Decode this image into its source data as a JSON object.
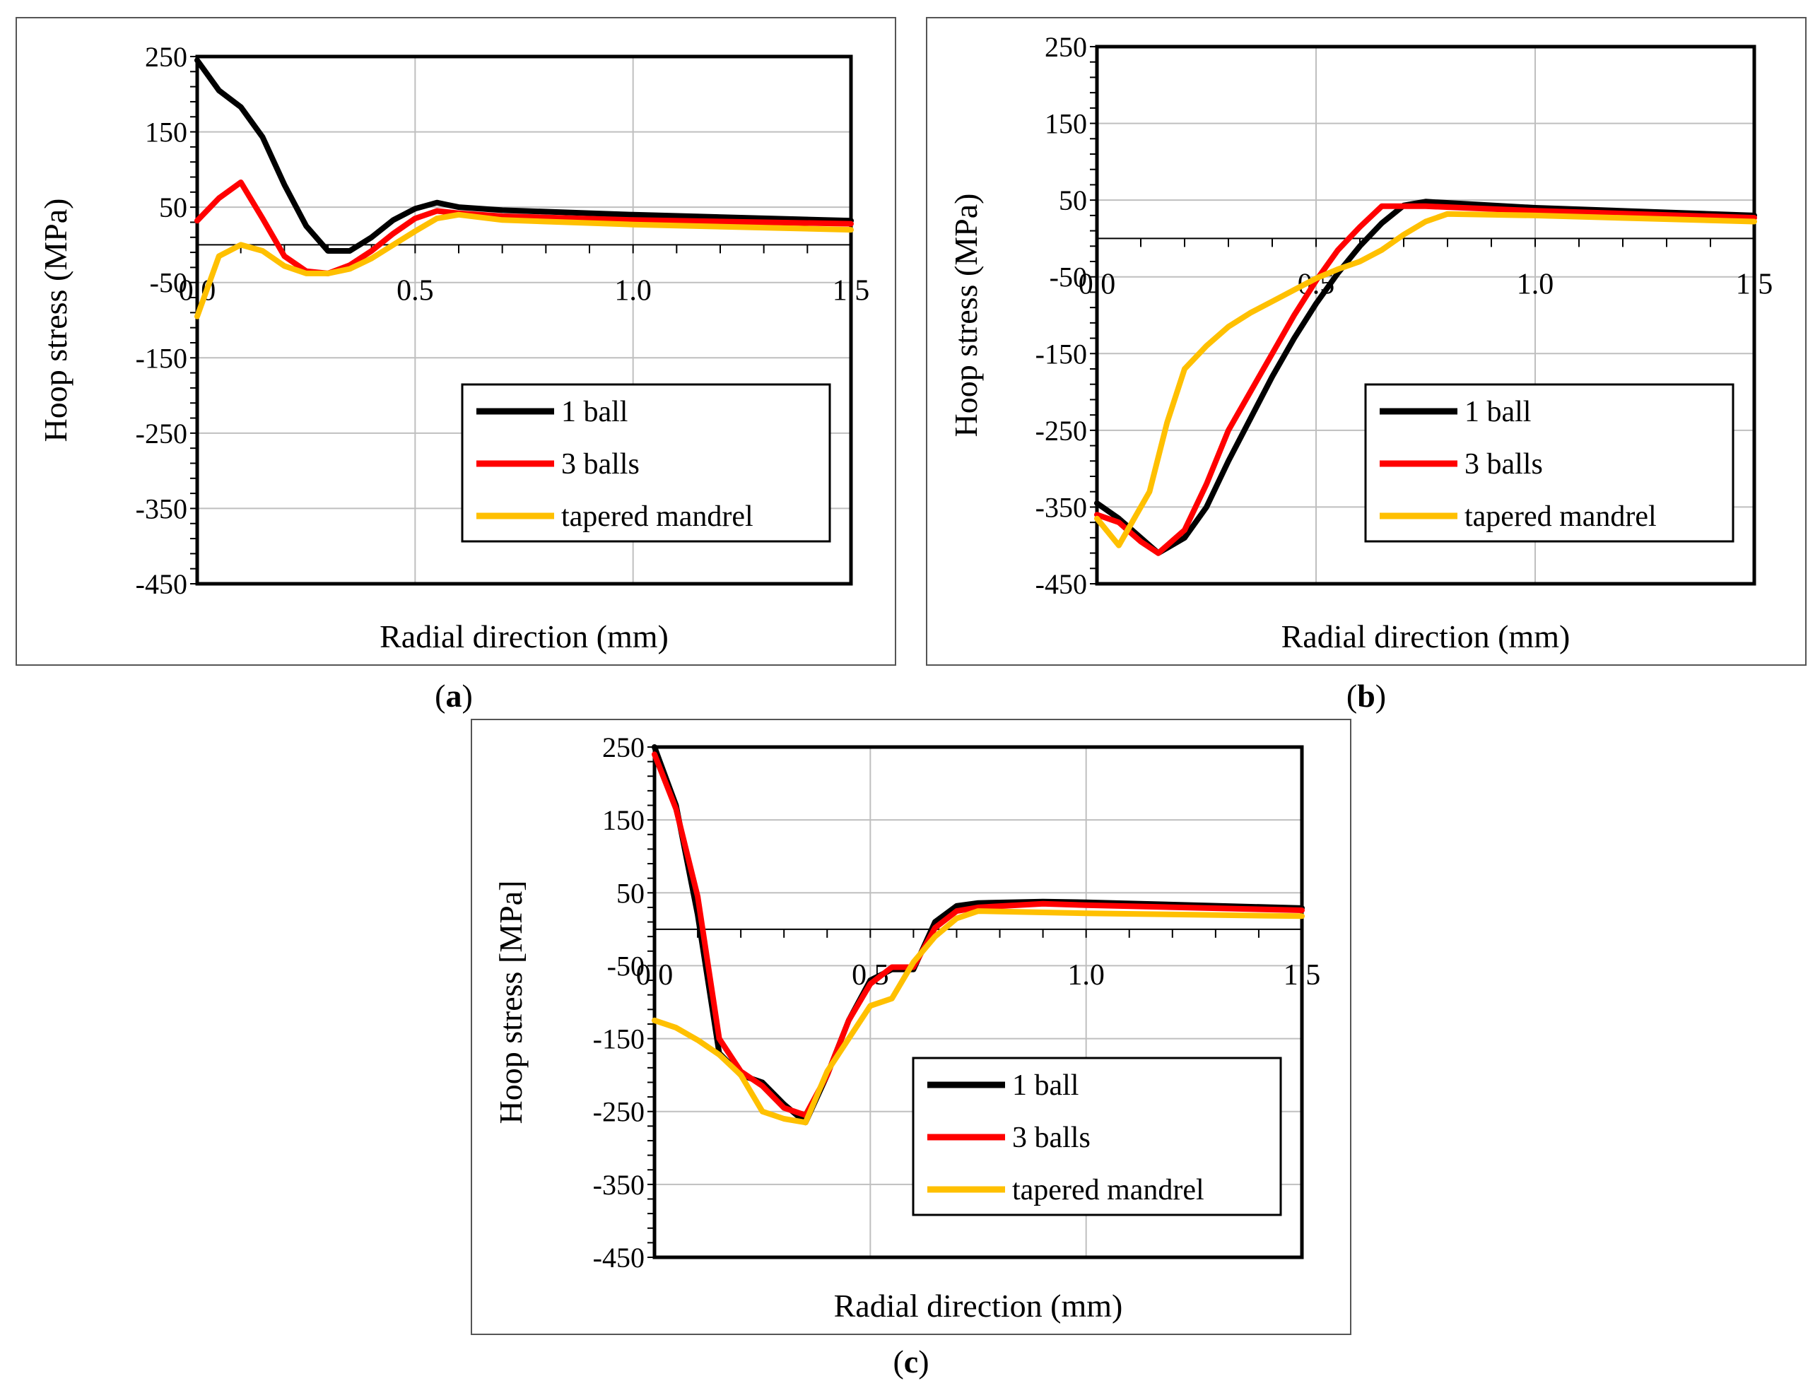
{
  "captions": {
    "a": "a",
    "b": "b",
    "c": "c"
  },
  "colors": {
    "one_ball": "#000000",
    "three_balls": "#ff0000",
    "tapered": "#ffc000",
    "grid": "#bfbfbf"
  },
  "chart_data": [
    {
      "id": "a",
      "type": "line",
      "xlabel": "Radial direction (mm)",
      "ylabel": "Hoop stress (MPa)",
      "xlim": [
        0,
        1.5
      ],
      "ylim": [
        -450,
        250
      ],
      "x_ticks": [
        "0.0",
        "0.5",
        "1.0",
        "1.5"
      ],
      "y_ticks": [
        "250",
        "150",
        "50",
        "-50",
        "-150",
        "-250",
        "-350",
        "-450"
      ],
      "grid": true,
      "legend_position": "bottom-right",
      "series": [
        {
          "name": "1 ball",
          "x": [
            0,
            0.05,
            0.1,
            0.15,
            0.2,
            0.25,
            0.3,
            0.35,
            0.4,
            0.45,
            0.5,
            0.55,
            0.6,
            0.7,
            1.0,
            1.5
          ],
          "y": [
            245,
            205,
            183,
            143,
            80,
            25,
            -8,
            -8,
            10,
            33,
            48,
            56,
            50,
            46,
            40,
            32
          ]
        },
        {
          "name": "3 balls",
          "x": [
            0,
            0.05,
            0.1,
            0.15,
            0.2,
            0.25,
            0.3,
            0.35,
            0.4,
            0.45,
            0.5,
            0.55,
            0.6,
            0.7,
            1.0,
            1.5
          ],
          "y": [
            32,
            62,
            83,
            35,
            -15,
            -35,
            -38,
            -27,
            -8,
            15,
            35,
            45,
            42,
            38,
            33,
            28
          ]
        },
        {
          "name": "tapered mandrel",
          "x": [
            0,
            0.05,
            0.1,
            0.15,
            0.2,
            0.25,
            0.3,
            0.35,
            0.4,
            0.45,
            0.5,
            0.55,
            0.6,
            0.7,
            1.0,
            1.5
          ],
          "y": [
            -95,
            -15,
            0,
            -8,
            -28,
            -38,
            -38,
            -32,
            -18,
            0,
            18,
            35,
            40,
            33,
            27,
            20
          ]
        }
      ]
    },
    {
      "id": "b",
      "type": "line",
      "xlabel": "Radial direction (mm)",
      "ylabel": "Hoop stress (MPa)",
      "xlim": [
        0,
        1.5
      ],
      "ylim": [
        -450,
        250
      ],
      "x_ticks": [
        "0.0",
        "0.5",
        "1.0",
        "1.5"
      ],
      "y_ticks": [
        "250",
        "150",
        "50",
        "-50",
        "-150",
        "-250",
        "-350",
        "-450"
      ],
      "grid": true,
      "legend_position": "bottom-right",
      "series": [
        {
          "name": "1 ball",
          "x": [
            0,
            0.05,
            0.1,
            0.14,
            0.2,
            0.25,
            0.3,
            0.35,
            0.4,
            0.45,
            0.5,
            0.55,
            0.6,
            0.65,
            0.7,
            0.75,
            1.0,
            1.5
          ],
          "y": [
            -345,
            -365,
            -390,
            -410,
            -390,
            -350,
            -290,
            -235,
            -180,
            -130,
            -85,
            -45,
            -10,
            20,
            43,
            48,
            40,
            30
          ]
        },
        {
          "name": "3 balls",
          "x": [
            0,
            0.05,
            0.1,
            0.14,
            0.2,
            0.25,
            0.3,
            0.35,
            0.4,
            0.45,
            0.5,
            0.55,
            0.6,
            0.65,
            0.7,
            0.75,
            1.0,
            1.5
          ],
          "y": [
            -360,
            -370,
            -395,
            -410,
            -380,
            -320,
            -250,
            -200,
            -150,
            -100,
            -55,
            -15,
            15,
            42,
            42,
            42,
            36,
            27
          ]
        },
        {
          "name": "tapered mandrel",
          "x": [
            0,
            0.05,
            0.08,
            0.12,
            0.16,
            0.2,
            0.25,
            0.3,
            0.35,
            0.4,
            0.45,
            0.5,
            0.55,
            0.6,
            0.65,
            0.7,
            0.75,
            0.8,
            1.0,
            1.5
          ],
          "y": [
            -365,
            -400,
            -370,
            -330,
            -240,
            -170,
            -140,
            -115,
            -97,
            -82,
            -67,
            -52,
            -40,
            -30,
            -15,
            5,
            22,
            32,
            30,
            22
          ]
        }
      ]
    },
    {
      "id": "c",
      "type": "line",
      "xlabel": "Radial direction (mm)",
      "ylabel": "Hoop stress [MPa]",
      "xlim": [
        0,
        1.5
      ],
      "ylim": [
        -450,
        250
      ],
      "x_ticks": [
        "0.0",
        "0.5",
        "1.0",
        "1.5"
      ],
      "y_ticks": [
        "250",
        "150",
        "50",
        "-50",
        "-150",
        "-250",
        "-350",
        "-450"
      ],
      "grid": true,
      "legend_position": "bottom-right",
      "series": [
        {
          "name": "1 ball",
          "x": [
            0,
            0.05,
            0.1,
            0.15,
            0.2,
            0.25,
            0.3,
            0.35,
            0.4,
            0.45,
            0.5,
            0.55,
            0.6,
            0.65,
            0.7,
            0.75,
            0.9,
            1.0,
            1.5
          ],
          "y": [
            250,
            170,
            20,
            -170,
            -200,
            -210,
            -240,
            -265,
            -200,
            -125,
            -70,
            -55,
            -55,
            10,
            32,
            36,
            38,
            37,
            29
          ]
        },
        {
          "name": "3 balls",
          "x": [
            0,
            0.05,
            0.1,
            0.15,
            0.2,
            0.25,
            0.3,
            0.35,
            0.4,
            0.45,
            0.5,
            0.55,
            0.6,
            0.65,
            0.7,
            0.75,
            0.9,
            1.0,
            1.5
          ],
          "y": [
            240,
            165,
            45,
            -150,
            -195,
            -215,
            -245,
            -255,
            -200,
            -125,
            -75,
            -52,
            -52,
            2,
            25,
            30,
            35,
            33,
            26
          ]
        },
        {
          "name": "tapered mandrel",
          "x": [
            0,
            0.05,
            0.1,
            0.15,
            0.2,
            0.25,
            0.3,
            0.35,
            0.4,
            0.45,
            0.5,
            0.55,
            0.6,
            0.65,
            0.7,
            0.75,
            1.0,
            1.5
          ],
          "y": [
            -125,
            -135,
            -152,
            -172,
            -200,
            -250,
            -260,
            -265,
            -195,
            -150,
            -105,
            -95,
            -45,
            -10,
            15,
            25,
            22,
            18
          ]
        }
      ]
    }
  ]
}
